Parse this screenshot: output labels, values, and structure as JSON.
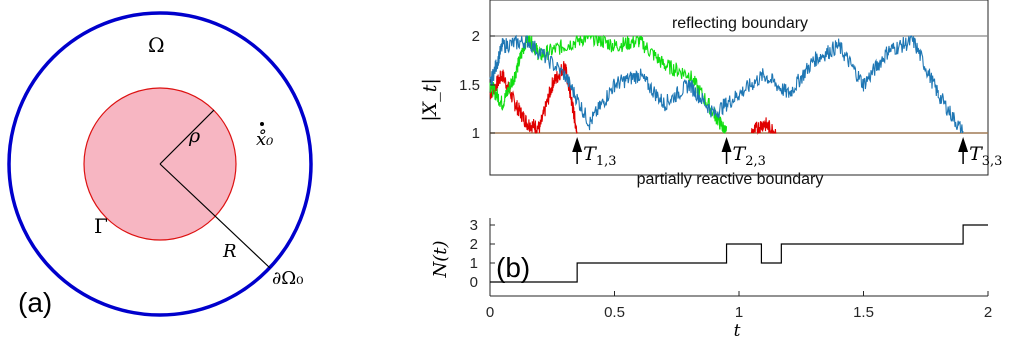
{
  "panel_a": {
    "label": "(a)",
    "omega_label": "Ω",
    "gamma_label": "Γ",
    "rho_label": "ρ",
    "r_label": "R",
    "x0_label": "x̊₀",
    "outer_boundary_label": "∂Ω₀",
    "colors": {
      "outer_circle": "#0000cc",
      "inner_fill": "#f7b6c2",
      "inner_edge": "#dd1111"
    }
  },
  "panel_b": {
    "label": "(b)",
    "top_ylabel": "|X_t|",
    "top_yticks": [
      "1",
      "1.5",
      "2"
    ],
    "reflecting_label": "reflecting boundary",
    "reactive_label": "partially reactive boundary",
    "events": [
      {
        "label": "T_{1,3}",
        "main": "T",
        "sub": "1,3",
        "t": 0.35
      },
      {
        "label": "T_{2,3}",
        "main": "T",
        "sub": "2,3",
        "t": 0.95
      },
      {
        "label": "T_{3,3}",
        "main": "T",
        "sub": "3,3",
        "t": 1.9
      }
    ],
    "bottom_ylabel": "N(t)",
    "bottom_yticks": [
      "0",
      "1",
      "2",
      "3"
    ],
    "xticks": [
      "0",
      "0.5",
      "1",
      "1.5",
      "2"
    ],
    "xlabel": "t",
    "colors": {
      "red": "#e00000",
      "green": "#11dd11",
      "blue": "#1f77b4"
    }
  },
  "chart_data": [
    {
      "type": "line",
      "title": "",
      "ylabel": "|X_t|",
      "xlim": [
        0,
        2
      ],
      "ylim": [
        0.88,
        2.25
      ],
      "annotations": [
        "reflecting boundary",
        "partially reactive boundary",
        "T_{1,3}",
        "T_{2,3}",
        "T_{3,3}"
      ],
      "series": [
        {
          "color": "red",
          "x": [
            0,
            0.05,
            0.1,
            0.15,
            0.2,
            0.25,
            0.3,
            0.33,
            0.35
          ],
          "y": [
            1.4,
            1.6,
            1.3,
            1.1,
            1.05,
            1.5,
            1.7,
            1.3,
            1.0
          ]
        },
        {
          "color": "green",
          "x": [
            0,
            0.05,
            0.1,
            0.15,
            0.2,
            0.3,
            0.4,
            0.5,
            0.6,
            0.7,
            0.8,
            0.9,
            0.95
          ],
          "y": [
            1.5,
            1.3,
            1.6,
            2.0,
            1.8,
            1.9,
            2.0,
            1.9,
            1.95,
            1.7,
            1.6,
            1.2,
            1.0
          ]
        },
        {
          "color": "blue",
          "x": [
            0,
            0.05,
            0.15,
            0.3,
            0.4,
            0.5,
            0.6,
            0.7,
            0.8,
            0.9,
            1.0,
            1.1,
            1.2,
            1.3,
            1.4,
            1.5,
            1.6,
            1.7,
            1.8,
            1.9
          ],
          "y": [
            1.5,
            1.9,
            1.95,
            1.6,
            1.1,
            1.5,
            1.6,
            1.3,
            1.5,
            1.2,
            1.4,
            1.6,
            1.4,
            1.75,
            1.9,
            1.5,
            1.85,
            1.95,
            1.4,
            1.0
          ]
        },
        {
          "color": "red",
          "x": [
            1.05,
            1.1,
            1.15
          ],
          "y": [
            1.0,
            1.1,
            1.0
          ]
        }
      ]
    },
    {
      "type": "line",
      "title": "",
      "xlabel": "t",
      "ylabel": "N(t)",
      "xlim": [
        0,
        2
      ],
      "ylim": [
        -0.3,
        3.4
      ],
      "series": [
        {
          "step": true,
          "x": [
            0,
            0.35,
            0.95,
            1.09,
            1.17,
            1.9,
            2.0
          ],
          "y": [
            0,
            1,
            2,
            1,
            2,
            3,
            3
          ]
        }
      ]
    }
  ]
}
